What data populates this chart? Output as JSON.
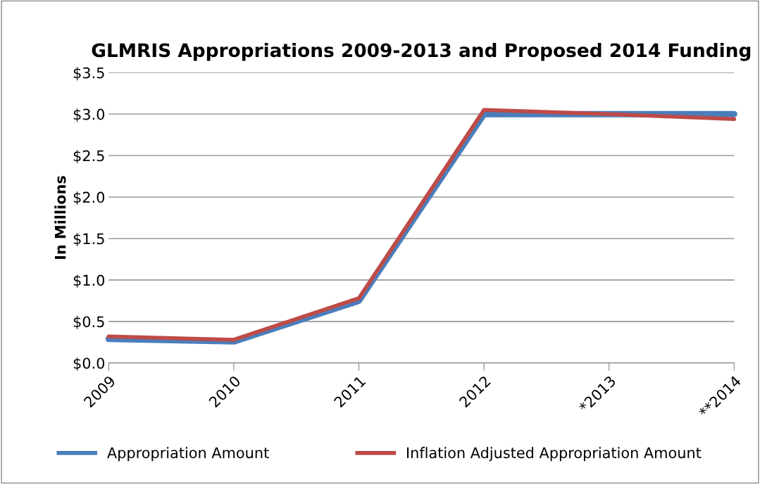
{
  "chart_data": {
    "type": "line",
    "title": "GLMRIS Appropriations 2009-2013 and Proposed 2014 Funding",
    "ylabel": "In Millions",
    "categories": [
      "2009",
      "2010",
      "2011",
      "2012",
      "*2013",
      "**2014"
    ],
    "series": [
      {
        "name": "Appropriation Amount",
        "color": "#4a7ebb",
        "values": [
          0.29,
          0.26,
          0.75,
          3.0,
          3.0,
          3.0
        ]
      },
      {
        "name": "Inflation Adjusted Appropriation Amount",
        "color": "#be4b48",
        "values": [
          0.32,
          0.28,
          0.78,
          3.05,
          3.0,
          2.94
        ]
      }
    ],
    "ylim": [
      0,
      3.5
    ],
    "yticks": [
      {
        "value": 0,
        "label": "$0.0"
      },
      {
        "value": 0.5,
        "label": "$0.5"
      },
      {
        "value": 1.0,
        "label": "$1.0"
      },
      {
        "value": 1.5,
        "label": "$1.5"
      },
      {
        "value": 2.0,
        "label": "$2.0"
      },
      {
        "value": 2.5,
        "label": "$2.5"
      },
      {
        "value": 3.0,
        "label": "$3.0"
      },
      {
        "value": 3.5,
        "label": "$3.5"
      }
    ],
    "grid": "y",
    "legend": "bottom",
    "marker": "none",
    "line_style": "solid"
  }
}
